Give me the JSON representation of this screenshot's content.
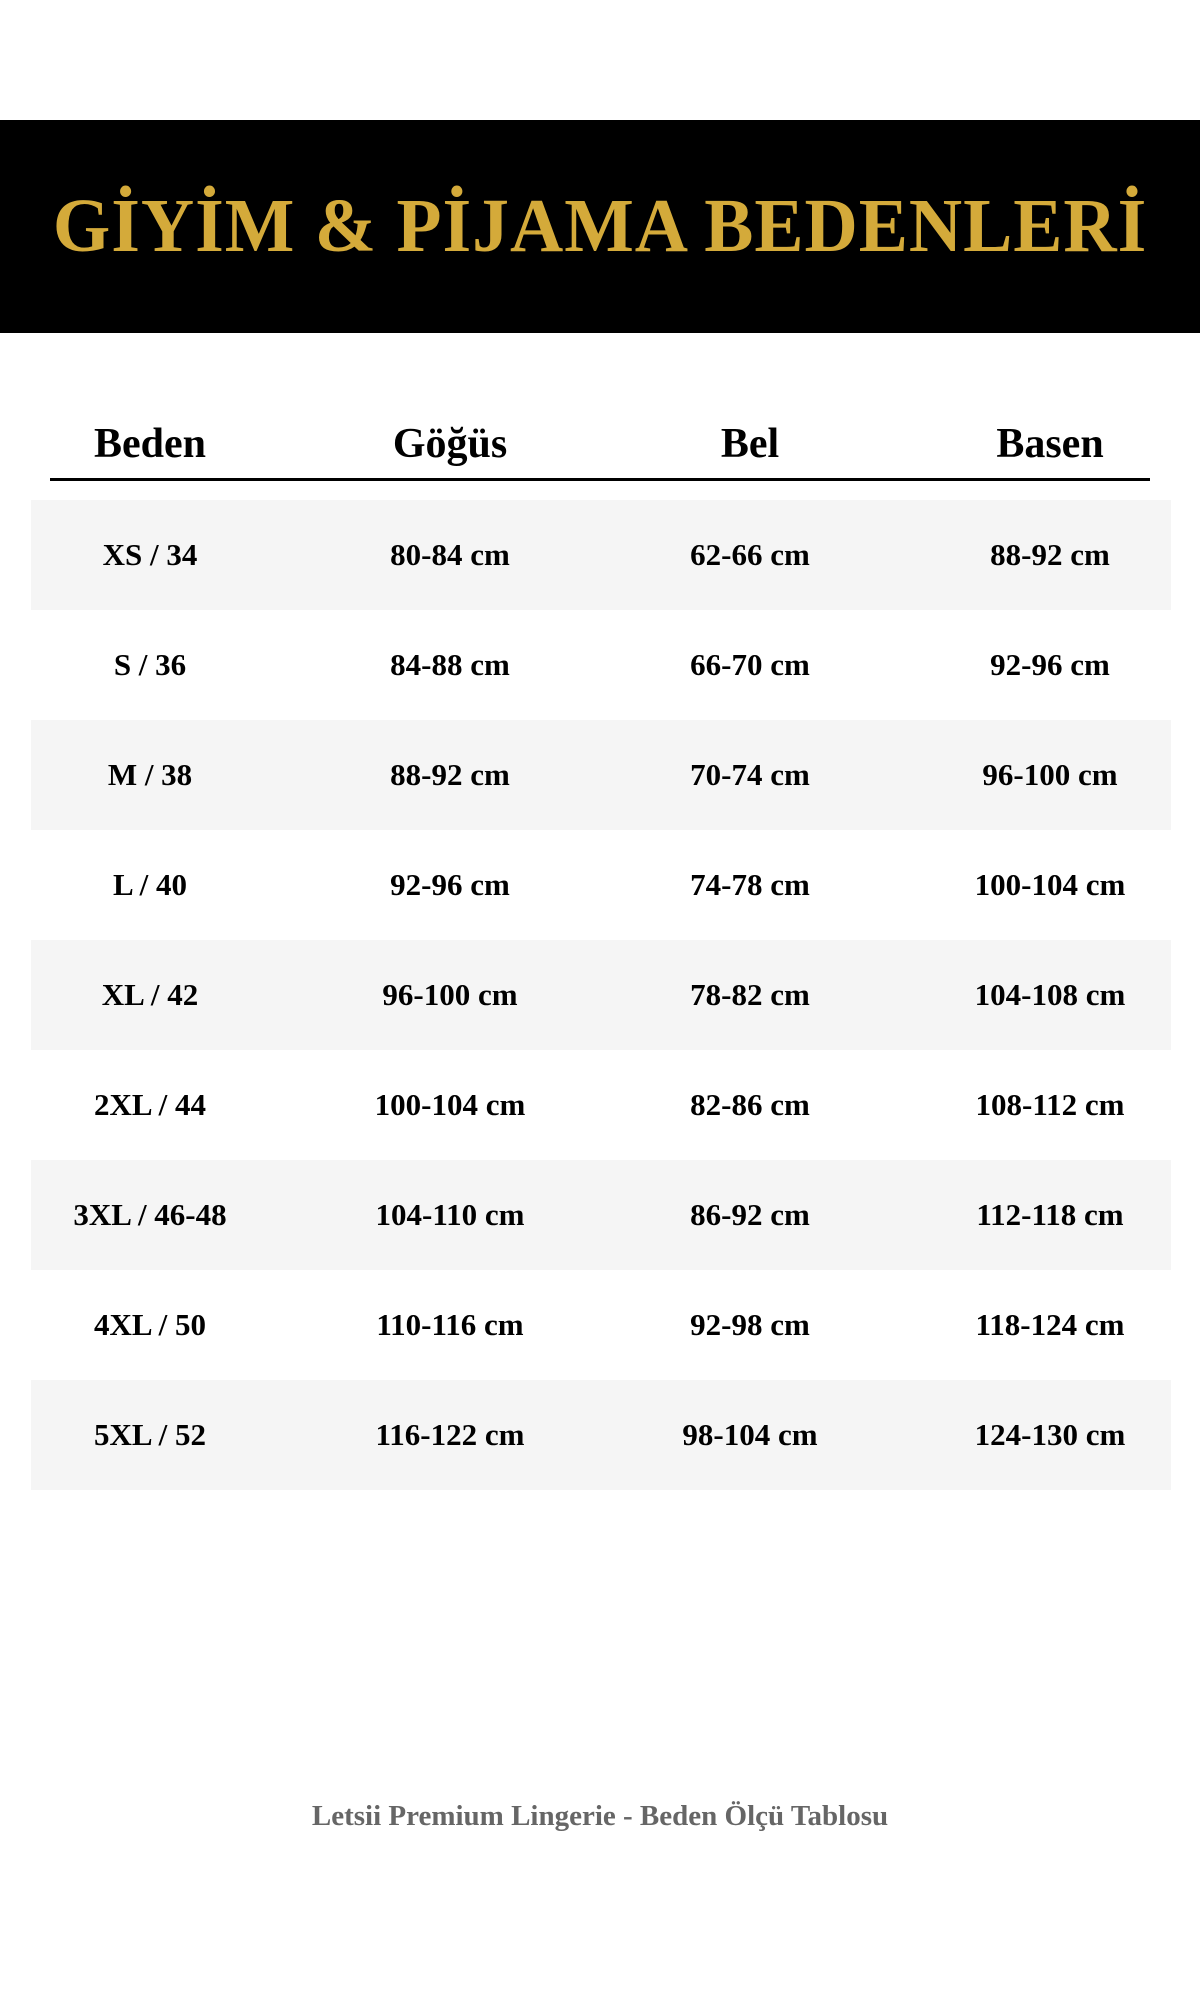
{
  "title": "GİYİM & PİJAMA BEDENLERİ",
  "colors": {
    "banner_bg": "#000000",
    "title": "#d4aa3a",
    "row_shade": "#f5f5f5",
    "footer": "#666666"
  },
  "table": {
    "headers": [
      "Beden",
      "Göğüs",
      "Bel",
      "Basen"
    ],
    "rows": [
      [
        "XS / 34",
        "80-84 cm",
        "62-66 cm",
        "88-92 cm"
      ],
      [
        "S / 36",
        "84-88 cm",
        "66-70 cm",
        "92-96 cm"
      ],
      [
        "M / 38",
        "88-92 cm",
        "70-74 cm",
        "96-100 cm"
      ],
      [
        "L / 40",
        "92-96 cm",
        "74-78 cm",
        "100-104 cm"
      ],
      [
        "XL / 42",
        "96-100 cm",
        "78-82 cm",
        "104-108 cm"
      ],
      [
        "2XL / 44",
        "100-104 cm",
        "82-86 cm",
        "108-112 cm"
      ],
      [
        "3XL / 46-48",
        "104-110 cm",
        "86-92 cm",
        "112-118 cm"
      ],
      [
        "4XL / 50",
        "110-116 cm",
        "92-98 cm",
        "118-124 cm"
      ],
      [
        "5XL / 52",
        "116-122 cm",
        "98-104 cm",
        "124-130 cm"
      ]
    ]
  },
  "footer": "Letsii Premium Lingerie - Beden Ölçü Tablosu"
}
